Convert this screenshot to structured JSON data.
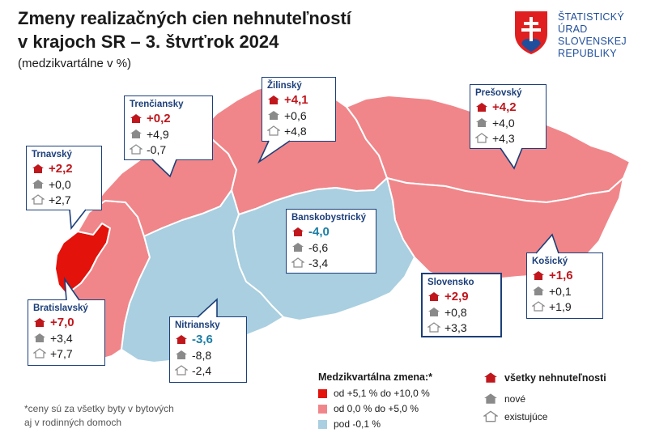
{
  "header": {
    "title_line1": "Zmeny realizačných cien nehnuteľností",
    "title_line2": "v krajoch SR – 3. štvrťrok 2024",
    "subtitle": "(medzikvartálne v %)"
  },
  "logo": {
    "lines": [
      "ŠTATISTICKÝ",
      "ÚRAD",
      "SLOVENSKEJ",
      "REPUBLIKY"
    ]
  },
  "colors": {
    "high": "#e3120b",
    "mid": "#f0868a",
    "low": "#a9cfe0",
    "frame": "#1c3f7a",
    "value_positive": "#c0171d",
    "value_negative": "#1b7ea6"
  },
  "regions": [
    {
      "id": "trnava",
      "name": "Trnavský",
      "all": "+2,2",
      "new": "+0,0",
      "existing": "+2,7",
      "category": "mid"
    },
    {
      "id": "trencin",
      "name": "Trenčiansky",
      "all": "+0,2",
      "new": "+4,9",
      "existing": "-0,7",
      "category": "mid"
    },
    {
      "id": "zilina",
      "name": "Žilinský",
      "all": "+4,1",
      "new": "+0,6",
      "existing": "+4,8",
      "category": "mid"
    },
    {
      "id": "presov",
      "name": "Prešovský",
      "all": "+4,2",
      "new": "+4,0",
      "existing": "+4,3",
      "category": "mid"
    },
    {
      "id": "bbystrica",
      "name": "Banskobystrický",
      "all": "-4,0",
      "new": "-6,6",
      "existing": "-3,4",
      "category": "low"
    },
    {
      "id": "kosice",
      "name": "Košický",
      "all": "+1,6",
      "new": "+0,1",
      "existing": "+1,9",
      "category": "mid"
    },
    {
      "id": "bratislava",
      "name": "Bratislavský",
      "all": "+7,0",
      "new": "+3,4",
      "existing": "+7,7",
      "category": "high"
    },
    {
      "id": "nitra",
      "name": "Nitriansky",
      "all": "-3,6",
      "new": "-8,8",
      "existing": "-2,4",
      "category": "low"
    },
    {
      "id": "slovensko",
      "name": "Slovensko",
      "all": "+2,9",
      "new": "+0,8",
      "existing": "+3,3",
      "category": "total"
    }
  ],
  "legend": {
    "title": "Medzikvartálna zmena:*",
    "ranges": [
      {
        "label": "od +5,1 % do +10,0 %",
        "color": "#e3120b"
      },
      {
        "label": "od 0,0 % do +5,0 %",
        "color": "#f0868a"
      },
      {
        "label": "pod -0,1 %",
        "color": "#a9cfe0"
      }
    ],
    "house_types": [
      {
        "label": "všetky nehnuteľnosti",
        "icon": "house-red-icon"
      },
      {
        "label": "nové",
        "icon": "house-gray-icon"
      },
      {
        "label": "existujúce",
        "icon": "house-outline-icon"
      }
    ]
  },
  "footnote": [
    "*ceny sú za všetky byty v bytových",
    "aj v rodinných domoch"
  ]
}
